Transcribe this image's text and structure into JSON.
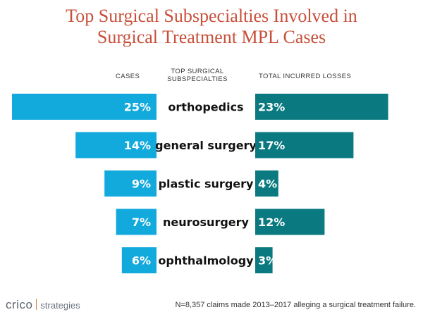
{
  "header": {
    "title_line1": "Top Surgical Subspecialties Involved in",
    "title_line2": "Surgical Treatment MPL Cases"
  },
  "columns": {
    "cases": "CASES",
    "subspecialties_line1": "TOP SURGICAL",
    "subspecialties_line2": "SUBSPECIALTIES",
    "losses": "TOTAL INCURRED LOSSES"
  },
  "colors": {
    "title": "#c8503a",
    "cases_bar": "#12a9dc",
    "losses_bar": "#0a7a80",
    "logo_separator": "#e07a2e"
  },
  "chart_data": {
    "type": "bar",
    "title": "Top Surgical Subspecialties Involved in Surgical Treatment MPL Cases",
    "categories": [
      "orthopedics",
      "general surgery",
      "plastic surgery",
      "neurosurgery",
      "ophthalmology"
    ],
    "series": [
      {
        "name": "CASES",
        "values": [
          25,
          14,
          9,
          7,
          6
        ],
        "labels": [
          "25%",
          "14%",
          "9%",
          "7%",
          "6%"
        ]
      },
      {
        "name": "TOTAL INCURRED LOSSES",
        "values": [
          23,
          17,
          4,
          12,
          3
        ],
        "labels": [
          "23%",
          "17%",
          "4%",
          "12%",
          "3%"
        ]
      }
    ],
    "unit": "%",
    "layout": "diverging-horizontal"
  },
  "footer": {
    "brand": "crico",
    "brand_sub": "strategies",
    "note": "N=8,357 claims made 2013–2017 alleging a surgical treatment failure."
  }
}
